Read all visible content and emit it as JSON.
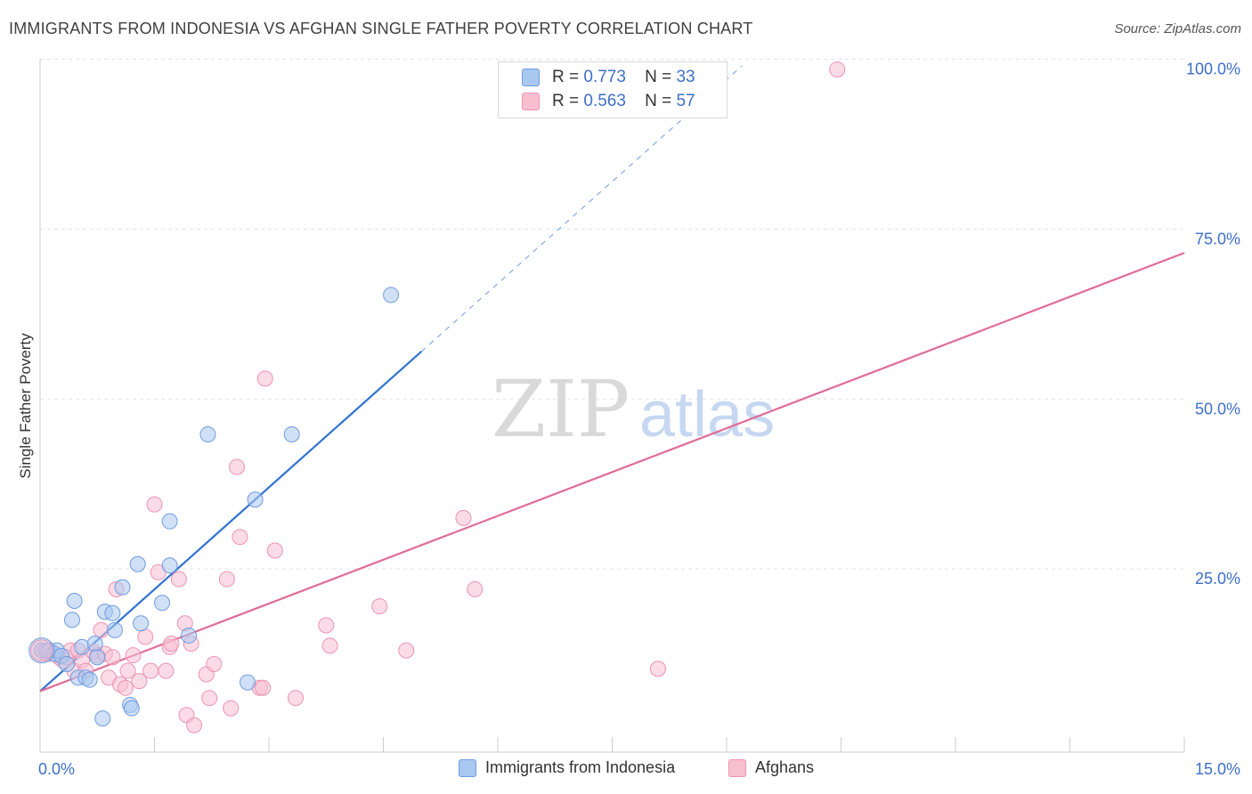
{
  "title": "IMMIGRANTS FROM INDONESIA VS AFGHAN SINGLE FATHER POVERTY CORRELATION CHART",
  "source": "Source: ZipAtlas.com",
  "watermark": {
    "zip": "ZIP",
    "atlas": "atlas"
  },
  "legend": {
    "r_label": "R =",
    "n_label": "N =",
    "series1": {
      "r": "0.773",
      "n": "33"
    },
    "series2": {
      "r": "0.563",
      "n": "57"
    }
  },
  "bottom_legend": {
    "series1": "Immigrants from Indonesia",
    "series2": "Afghans"
  },
  "colors": {
    "blue_fill": "#a9c8f0",
    "blue_stroke": "#6f9be0",
    "blue_line": "#3173d1",
    "pink_fill": "#f8bfd1",
    "pink_stroke": "#ec93b2",
    "pink_line": "#e06c98",
    "tick_text": "#3d6fc8",
    "grid": "#e3e3e3"
  },
  "chart_data": {
    "type": "scatter",
    "title": "IMMIGRANTS FROM INDONESIA VS AFGHAN SINGLE FATHER POVERTY CORRELATION CHART",
    "xlabel": "",
    "ylabel": "Single Father Poverty",
    "xlim": [
      0,
      15
    ],
    "ylim": [
      0,
      100
    ],
    "x_tick_labels": [
      "0.0%",
      "15.0%"
    ],
    "y_ticks": [
      25,
      50,
      75,
      100
    ],
    "y_tick_labels": [
      "25.0%",
      "50.0%",
      "75.0%",
      "100.0%"
    ],
    "series": [
      {
        "name": "Immigrants from Indonesia",
        "r": 0.773,
        "n": 33,
        "trend": {
          "x0": 0,
          "y0": 7,
          "x1": 5.0,
          "y1": 57,
          "dashed_to_x": 9.2,
          "dashed_to_y": 99
        },
        "points": [
          [
            0.02,
            13
          ],
          [
            0.08,
            13
          ],
          [
            0.12,
            13
          ],
          [
            0.18,
            12.5
          ],
          [
            0.22,
            13
          ],
          [
            0.28,
            12.2
          ],
          [
            0.35,
            11
          ],
          [
            0.42,
            17.5
          ],
          [
            0.45,
            20.3
          ],
          [
            0.5,
            9
          ],
          [
            0.55,
            13.5
          ],
          [
            0.6,
            9
          ],
          [
            0.65,
            8.7
          ],
          [
            0.72,
            14
          ],
          [
            0.75,
            12
          ],
          [
            0.82,
            3
          ],
          [
            0.85,
            18.7
          ],
          [
            0.95,
            18.5
          ],
          [
            0.98,
            16
          ],
          [
            1.08,
            22.3
          ],
          [
            1.18,
            5
          ],
          [
            1.2,
            4.5
          ],
          [
            1.28,
            25.7
          ],
          [
            1.32,
            17
          ],
          [
            1.6,
            20
          ],
          [
            1.7,
            25.5
          ],
          [
            1.7,
            32
          ],
          [
            1.95,
            15.2
          ],
          [
            2.2,
            44.8
          ],
          [
            2.82,
            35.2
          ],
          [
            2.72,
            8.3
          ],
          [
            3.3,
            44.8
          ],
          [
            4.6,
            65.3
          ]
        ]
      },
      {
        "name": "Afghans",
        "r": 0.563,
        "n": 57,
        "trend": {
          "x0": 0,
          "y0": 7,
          "x1": 15,
          "y1": 71.5
        },
        "points": [
          [
            0.02,
            13
          ],
          [
            0.05,
            12.8
          ],
          [
            0.1,
            12.5
          ],
          [
            0.15,
            12.8
          ],
          [
            0.2,
            12.5
          ],
          [
            0.25,
            12
          ],
          [
            0.3,
            11.5
          ],
          [
            0.35,
            12
          ],
          [
            0.4,
            13
          ],
          [
            0.45,
            10
          ],
          [
            0.5,
            13
          ],
          [
            0.55,
            11.5
          ],
          [
            0.6,
            10
          ],
          [
            0.7,
            12.8
          ],
          [
            0.75,
            12.3
          ],
          [
            0.8,
            16
          ],
          [
            0.85,
            12.5
          ],
          [
            0.9,
            9
          ],
          [
            0.95,
            12
          ],
          [
            1.0,
            22
          ],
          [
            1.05,
            8
          ],
          [
            1.12,
            7.5
          ],
          [
            1.15,
            10
          ],
          [
            1.22,
            12.3
          ],
          [
            1.3,
            8.5
          ],
          [
            1.38,
            15
          ],
          [
            1.45,
            10
          ],
          [
            1.5,
            34.5
          ],
          [
            1.55,
            24.5
          ],
          [
            1.65,
            10
          ],
          [
            1.7,
            13.5
          ],
          [
            1.72,
            14
          ],
          [
            1.82,
            23.5
          ],
          [
            1.9,
            17
          ],
          [
            1.92,
            3.5
          ],
          [
            1.98,
            14
          ],
          [
            2.02,
            2
          ],
          [
            2.18,
            9.5
          ],
          [
            2.22,
            6
          ],
          [
            2.28,
            11
          ],
          [
            2.45,
            23.5
          ],
          [
            2.5,
            4.5
          ],
          [
            2.58,
            40
          ],
          [
            2.62,
            29.7
          ],
          [
            2.88,
            7.5
          ],
          [
            2.92,
            7.5
          ],
          [
            2.95,
            53
          ],
          [
            3.08,
            27.7
          ],
          [
            3.35,
            6
          ],
          [
            3.75,
            16.7
          ],
          [
            3.8,
            13.7
          ],
          [
            4.45,
            19.5
          ],
          [
            4.8,
            13
          ],
          [
            5.55,
            32.5
          ],
          [
            5.7,
            22
          ],
          [
            8.1,
            10.3
          ],
          [
            10.45,
            98.5
          ]
        ]
      }
    ]
  }
}
